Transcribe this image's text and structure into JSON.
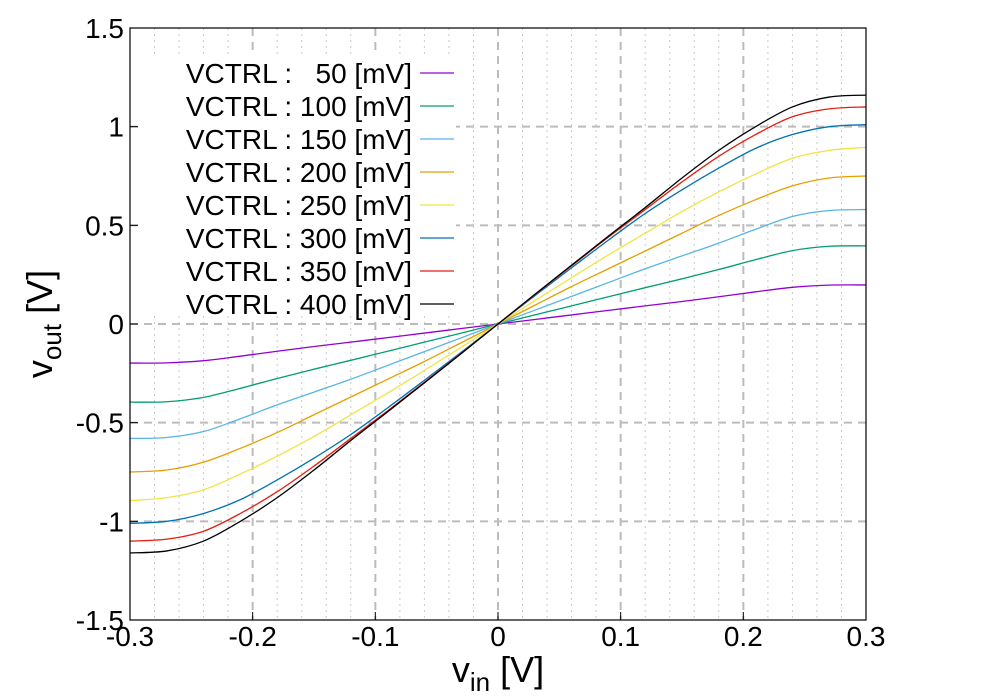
{
  "chart_data": {
    "type": "line",
    "title": "",
    "xlabel": {
      "main": "v",
      "sub": "in",
      "unit": " [V]"
    },
    "ylabel": {
      "main": "v",
      "sub": "out",
      "unit": " [V]"
    },
    "xlim": [
      -0.3,
      0.3
    ],
    "ylim": [
      -1.5,
      1.5
    ],
    "x_ticks": [
      -0.3,
      -0.2,
      -0.1,
      0,
      0.1,
      0.2,
      0.3
    ],
    "x_tick_labels": [
      "-0.3",
      "-0.2",
      "-0.1",
      "0",
      "0.1",
      "0.2",
      "0.3"
    ],
    "y_ticks": [
      -1.5,
      -1,
      -0.5,
      0,
      0.5,
      1,
      1.5
    ],
    "y_tick_labels": [
      "-1.5",
      "-1",
      "-0.5",
      "0",
      "0.5",
      "1",
      "1.5"
    ],
    "x_minor_step": 0.02,
    "grid": true,
    "legend_position": "top-left",
    "x": [
      -0.3,
      -0.27,
      -0.24,
      -0.21,
      -0.18,
      -0.15,
      -0.12,
      -0.09,
      -0.06,
      -0.03,
      0,
      0.03,
      0.06,
      0.09,
      0.12,
      0.15,
      0.18,
      0.21,
      0.24,
      0.27,
      0.3
    ],
    "series": [
      {
        "name": "VCTRL :   50 [mV]",
        "color": "#9400d3",
        "values": [
          -0.198,
          -0.197,
          -0.186,
          -0.163,
          -0.138,
          -0.114,
          -0.092,
          -0.069,
          -0.046,
          -0.023,
          0,
          0.023,
          0.046,
          0.069,
          0.092,
          0.114,
          0.138,
          0.163,
          0.186,
          0.197,
          0.198
        ]
      },
      {
        "name": "VCTRL : 100 [mV]",
        "color": "#009e73",
        "values": [
          -0.396,
          -0.394,
          -0.372,
          -0.326,
          -0.276,
          -0.229,
          -0.184,
          -0.138,
          -0.092,
          -0.046,
          0,
          0.046,
          0.092,
          0.138,
          0.184,
          0.229,
          0.276,
          0.326,
          0.372,
          0.394,
          0.396
        ]
      },
      {
        "name": "VCTRL : 150 [mV]",
        "color": "#56b4e9",
        "values": [
          -0.58,
          -0.575,
          -0.545,
          -0.48,
          -0.41,
          -0.345,
          -0.28,
          -0.21,
          -0.14,
          -0.07,
          0,
          0.07,
          0.14,
          0.21,
          0.28,
          0.345,
          0.41,
          0.48,
          0.545,
          0.575,
          0.58
        ]
      },
      {
        "name": "VCTRL : 200 [mV]",
        "color": "#e69f00",
        "values": [
          -0.75,
          -0.74,
          -0.7,
          -0.63,
          -0.55,
          -0.46,
          -0.37,
          -0.28,
          -0.19,
          -0.095,
          0,
          0.095,
          0.19,
          0.28,
          0.37,
          0.46,
          0.55,
          0.63,
          0.7,
          0.74,
          0.75
        ]
      },
      {
        "name": "VCTRL : 250 [mV]",
        "color": "#f0e442",
        "values": [
          -0.895,
          -0.88,
          -0.84,
          -0.76,
          -0.67,
          -0.57,
          -0.46,
          -0.35,
          -0.235,
          -0.118,
          0,
          0.118,
          0.235,
          0.35,
          0.46,
          0.57,
          0.67,
          0.76,
          0.84,
          0.88,
          0.895
        ]
      },
      {
        "name": "VCTRL : 300 [mV]",
        "color": "#0072b2",
        "values": [
          -1.01,
          -1.0,
          -0.96,
          -0.89,
          -0.79,
          -0.68,
          -0.56,
          -0.425,
          -0.285,
          -0.143,
          0,
          0.143,
          0.285,
          0.425,
          0.56,
          0.68,
          0.79,
          0.89,
          0.96,
          1.0,
          1.01
        ]
      },
      {
        "name": "VCTRL : 350 [mV]",
        "color": "#e51e10",
        "values": [
          -1.1,
          -1.09,
          -1.05,
          -0.96,
          -0.85,
          -0.72,
          -0.58,
          -0.44,
          -0.295,
          -0.148,
          0,
          0.148,
          0.295,
          0.44,
          0.58,
          0.72,
          0.85,
          0.96,
          1.05,
          1.09,
          1.1
        ]
      },
      {
        "name": "VCTRL : 400 [mV]",
        "color": "#000000",
        "values": [
          -1.16,
          -1.15,
          -1.1,
          -1.0,
          -0.88,
          -0.74,
          -0.59,
          -0.445,
          -0.298,
          -0.15,
          0,
          0.15,
          0.298,
          0.445,
          0.59,
          0.74,
          0.88,
          1.0,
          1.1,
          1.15,
          1.16
        ]
      }
    ]
  }
}
